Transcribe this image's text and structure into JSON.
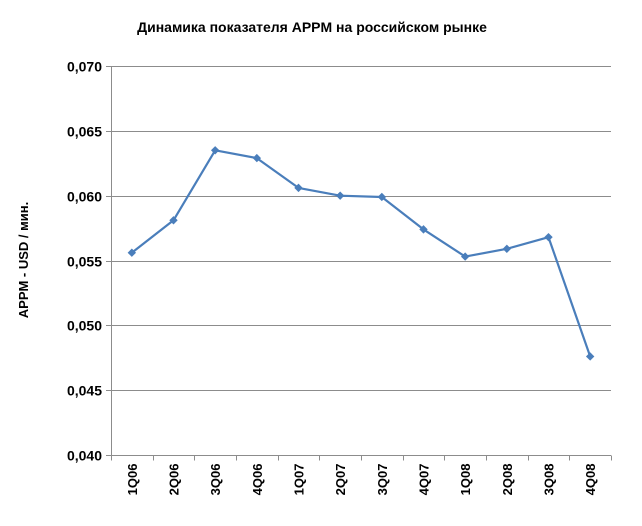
{
  "chart_data": {
    "type": "line",
    "title": "Динамика показателя APPM на российском рынке",
    "xlabel": "",
    "ylabel": "APPM - USD / мин.",
    "categories": [
      "1Q06",
      "2Q06",
      "3Q06",
      "4Q06",
      "1Q07",
      "2Q07",
      "3Q07",
      "4Q07",
      "1Q08",
      "2Q08",
      "3Q08",
      "4Q08"
    ],
    "series": [
      {
        "values": [
          0.0556,
          0.0581,
          0.0635,
          0.0629,
          0.0606,
          0.06,
          0.0599,
          0.0574,
          0.0553,
          0.0559,
          0.0568,
          0.0476
        ]
      }
    ],
    "ylim": [
      0.04,
      0.07
    ],
    "yticks": [
      0.04,
      0.045,
      0.05,
      0.055,
      0.06,
      0.065,
      0.07
    ],
    "ytick_labels": [
      "0,040",
      "0,045",
      "0,050",
      "0,055",
      "0,060",
      "0,065",
      "0,070"
    ],
    "grid": "horizontal",
    "legend": "none",
    "colors": {
      "line": "#4a7ebb",
      "marker": "#4a7ebb",
      "grid": "#8c8c8c",
      "axis": "#8c8c8c"
    },
    "marker": "diamond"
  }
}
